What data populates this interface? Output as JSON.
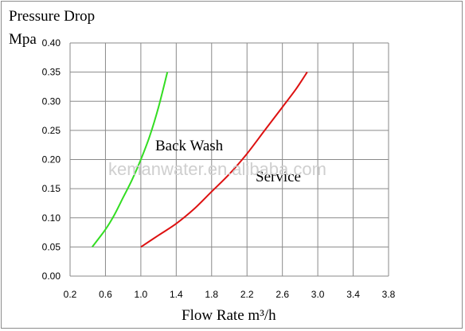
{
  "chart_data": {
    "type": "line",
    "ylabel_line1": "Pressure Drop",
    "ylabel_line2": "Mpa",
    "xlabel": "Flow Rate m³/h",
    "xlim": [
      0.2,
      3.8
    ],
    "ylim": [
      0.0,
      0.4
    ],
    "x_ticks": [
      "0.2",
      "0.6",
      "1.0",
      "1.4",
      "1.8",
      "2.2",
      "2.6",
      "3.0",
      "3.4",
      "3.8"
    ],
    "y_ticks": [
      "0.00",
      "0.05",
      "0.10",
      "0.15",
      "0.20",
      "0.25",
      "0.30",
      "0.35",
      "0.40"
    ],
    "grid": true,
    "series": [
      {
        "name": "Back Wash",
        "color": "#33dd22",
        "x": [
          0.45,
          0.6,
          0.7,
          0.8,
          0.9,
          1.0,
          1.1,
          1.2,
          1.3
        ],
        "y": [
          0.05,
          0.08,
          0.105,
          0.135,
          0.165,
          0.2,
          0.24,
          0.29,
          0.35
        ]
      },
      {
        "name": "Service",
        "color": "#dd1111",
        "x": [
          1.0,
          1.2,
          1.4,
          1.6,
          1.8,
          2.0,
          2.2,
          2.4,
          2.6,
          2.75,
          2.88
        ],
        "y": [
          0.05,
          0.07,
          0.09,
          0.115,
          0.145,
          0.175,
          0.21,
          0.25,
          0.29,
          0.32,
          0.35
        ]
      }
    ],
    "watermark": "kemanwater.en.alibaba.com"
  }
}
